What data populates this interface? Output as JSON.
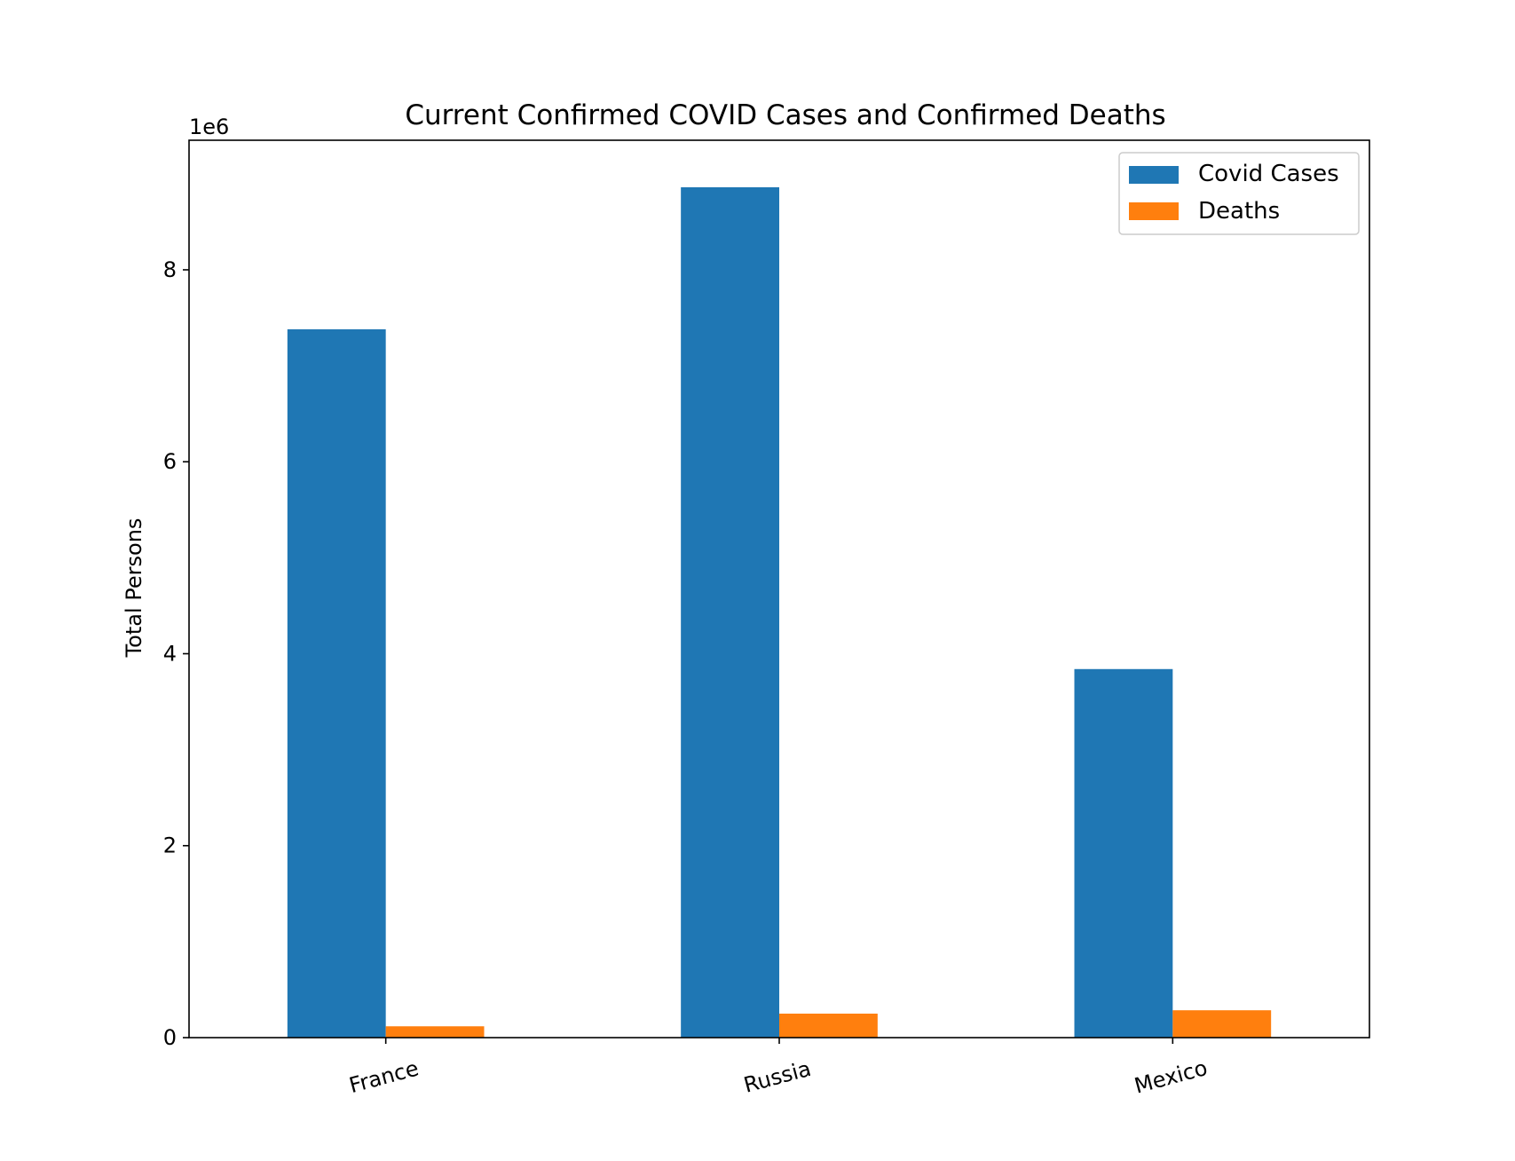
{
  "chart_data": {
    "type": "bar",
    "title": "Current Confirmed COVID Cases and Confirmed Deaths",
    "xlabel": "",
    "ylabel": "Total Persons",
    "y_offset_label": "1e6",
    "categories": [
      "France",
      "Russia",
      "Mexico"
    ],
    "series": [
      {
        "name": "Covid Cases",
        "color": "#1f77b4",
        "values": [
          7380000,
          8860000,
          3840000
        ]
      },
      {
        "name": "Deaths",
        "color": "#ff7f0e",
        "values": [
          118000,
          250000,
          285000
        ]
      }
    ],
    "ylim": [
      0,
      9350000
    ],
    "yticks": [
      0,
      2000000,
      4000000,
      6000000,
      8000000
    ],
    "ytick_labels": [
      "0",
      "2",
      "4",
      "6",
      "8"
    ],
    "xtick_rotation_deg": -15,
    "legend_position": "top-right",
    "grid": false
  }
}
